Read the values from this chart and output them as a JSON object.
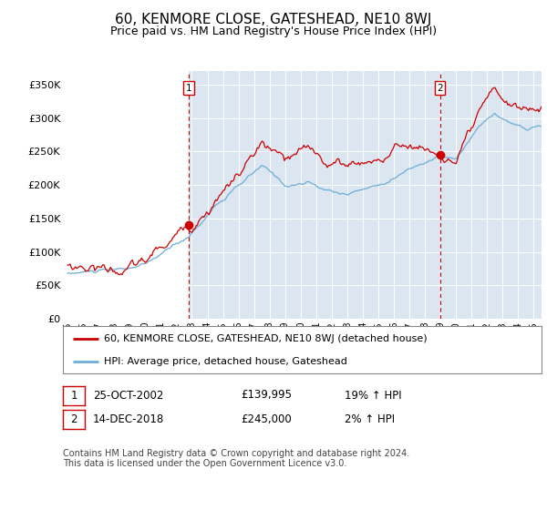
{
  "title": "60, KENMORE CLOSE, GATESHEAD, NE10 8WJ",
  "subtitle": "Price paid vs. HM Land Registry's House Price Index (HPI)",
  "title_fontsize": 11,
  "subtitle_fontsize": 9,
  "plot_bg_color": "#dce6f0",
  "ylim": [
    0,
    370000
  ],
  "yticks": [
    0,
    50000,
    100000,
    150000,
    200000,
    250000,
    300000,
    350000
  ],
  "ytick_labels": [
    "£0",
    "£50K",
    "£100K",
    "£150K",
    "£200K",
    "£250K",
    "£300K",
    "£350K"
  ],
  "xlim_start": 1994.7,
  "xlim_end": 2025.5,
  "xtick_years": [
    1995,
    1996,
    1997,
    1998,
    1999,
    2000,
    2001,
    2002,
    2003,
    2004,
    2005,
    2006,
    2007,
    2008,
    2009,
    2010,
    2011,
    2012,
    2013,
    2014,
    2015,
    2016,
    2017,
    2018,
    2019,
    2020,
    2021,
    2022,
    2023,
    2024,
    2025
  ],
  "hpi_color": "#6baed6",
  "price_color": "#cc0000",
  "purchase1_x": 2002.82,
  "purchase1_y": 139995,
  "purchase2_x": 2018.96,
  "purchase2_y": 245000,
  "legend_line1": "60, KENMORE CLOSE, GATESHEAD, NE10 8WJ (detached house)",
  "legend_line2": "HPI: Average price, detached house, Gateshead",
  "table_row1_num": "1",
  "table_row1_date": "25-OCT-2002",
  "table_row1_price": "£139,995",
  "table_row1_hpi": "19% ↑ HPI",
  "table_row2_num": "2",
  "table_row2_date": "14-DEC-2018",
  "table_row2_price": "£245,000",
  "table_row2_hpi": "2% ↑ HPI",
  "footer": "Contains HM Land Registry data © Crown copyright and database right 2024.\nThis data is licensed under the Open Government Licence v3.0."
}
